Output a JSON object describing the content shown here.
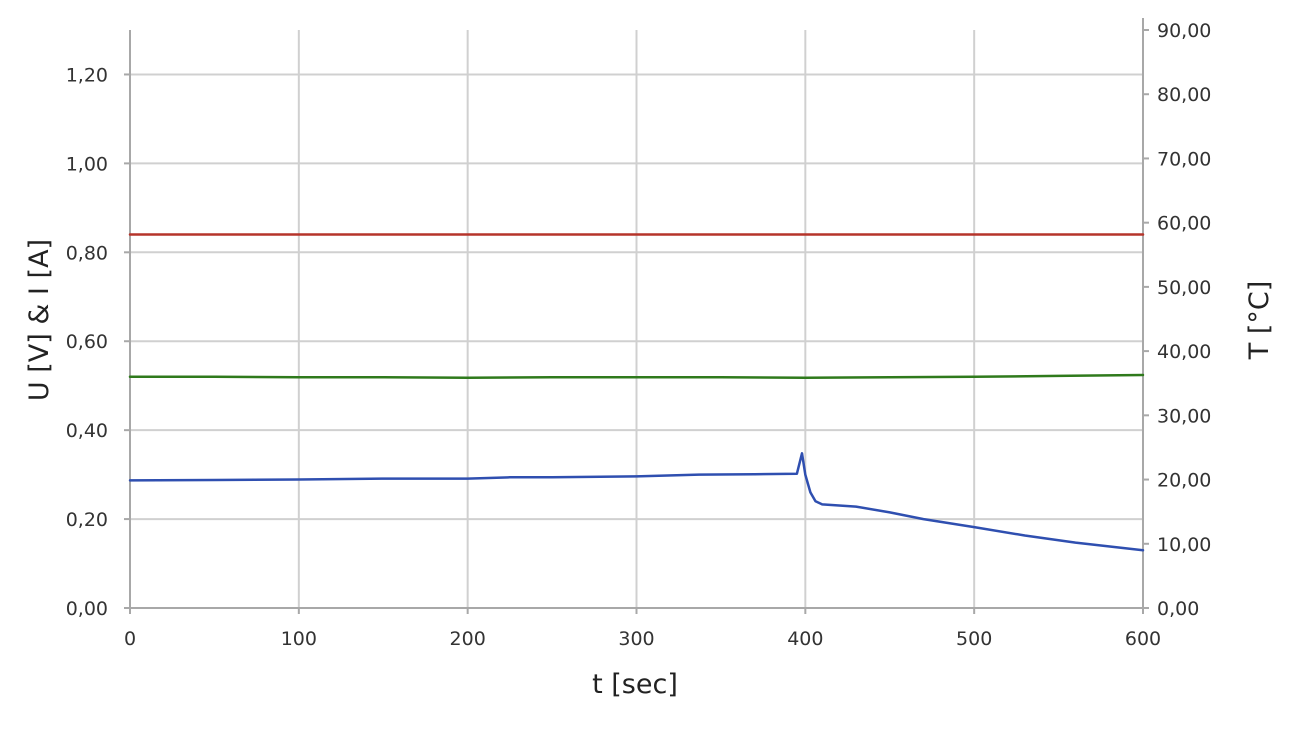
{
  "chart_data": {
    "type": "line",
    "title": "",
    "xlabel": "t [sec]",
    "ylabel": "U [V] & I [A]",
    "y2label": "T [°C]",
    "xlim": [
      0,
      600
    ],
    "ylim": [
      0,
      1.3
    ],
    "y2lim": [
      0,
      90
    ],
    "x_ticks": [
      0,
      100,
      200,
      300,
      400,
      500,
      600
    ],
    "x_tick_labels": [
      "0",
      "100",
      "200",
      "300",
      "400",
      "500",
      "600"
    ],
    "y_ticks": [
      0,
      0.2,
      0.4,
      0.6,
      0.8,
      1.0,
      1.2
    ],
    "y_tick_labels": [
      "0,00",
      "0,20",
      "0,40",
      "0,60",
      "0,80",
      "1,00",
      "1,20"
    ],
    "y2_ticks": [
      0,
      10,
      20,
      30,
      40,
      50,
      60,
      70,
      80,
      90
    ],
    "y2_tick_labels": [
      "0,00",
      "10,00",
      "20,00",
      "30,00",
      "40,00",
      "50,00",
      "60,00",
      "70,00",
      "80,00",
      "90,00"
    ],
    "grid": true,
    "legend": "none",
    "series": [
      {
        "color": "#b5342a",
        "axis": "left",
        "x": [
          0,
          100,
          200,
          300,
          400,
          500,
          600
        ],
        "values": [
          0.84,
          0.84,
          0.84,
          0.84,
          0.84,
          0.84,
          0.84
        ]
      },
      {
        "color": "#2f7a1c",
        "axis": "left",
        "x": [
          0,
          50,
          100,
          150,
          200,
          250,
          300,
          350,
          400,
          450,
          500,
          550,
          600
        ],
        "values": [
          0.52,
          0.52,
          0.519,
          0.519,
          0.518,
          0.519,
          0.519,
          0.519,
          0.518,
          0.519,
          0.52,
          0.522,
          0.524
        ]
      },
      {
        "color": "#2f4fb0",
        "axis": "left",
        "x": [
          0,
          50,
          100,
          150,
          200,
          225,
          250,
          300,
          337,
          370,
          395,
          398,
          400,
          403,
          406,
          410,
          430,
          450,
          470,
          500,
          530,
          560,
          600
        ],
        "values": [
          0.287,
          0.288,
          0.289,
          0.291,
          0.291,
          0.294,
          0.294,
          0.296,
          0.3,
          0.301,
          0.302,
          0.348,
          0.3,
          0.26,
          0.24,
          0.233,
          0.228,
          0.215,
          0.2,
          0.182,
          0.163,
          0.147,
          0.13
        ]
      }
    ]
  }
}
